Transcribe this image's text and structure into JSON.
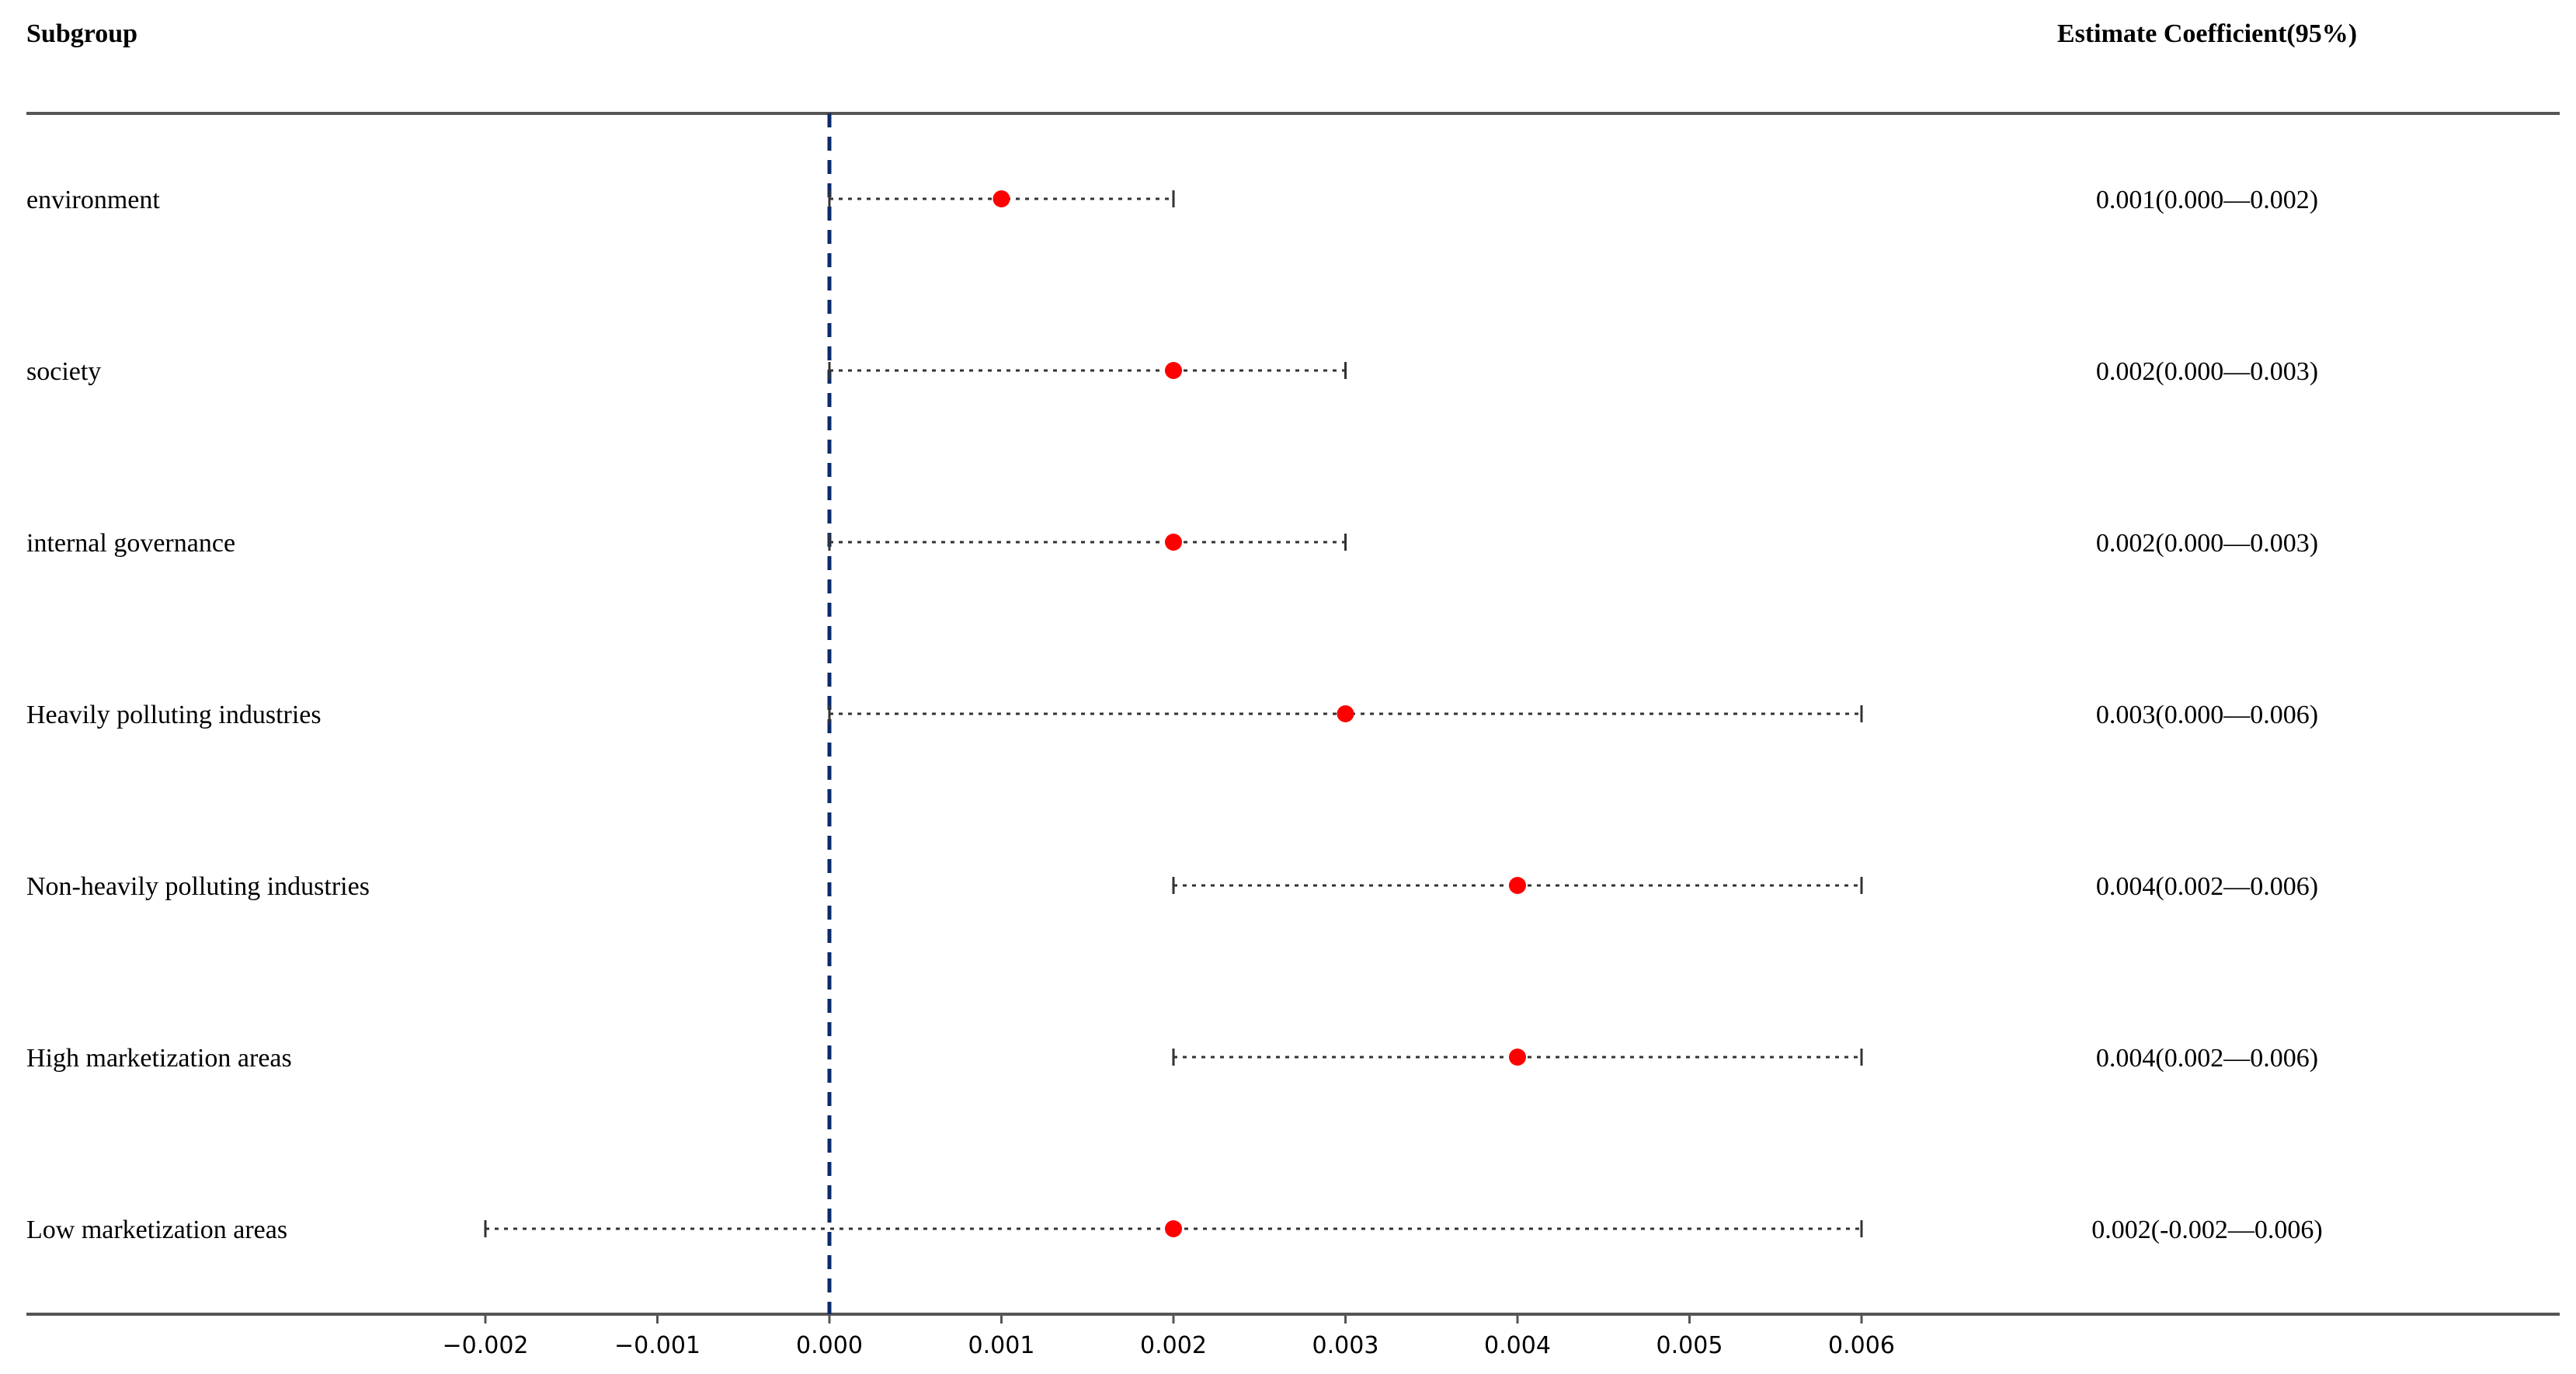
{
  "chart_data": {
    "type": "scatter",
    "subtype": "forest-plot",
    "column_headers": {
      "subgroup": "Subgroup",
      "estimate": "Estimate Coefficient(95%)"
    },
    "rows": [
      {
        "label": "environment",
        "estimate": 0.001,
        "lower": 0.0,
        "upper": 0.002,
        "text": "0.001(0.000—0.002)"
      },
      {
        "label": "society",
        "estimate": 0.002,
        "lower": 0.0,
        "upper": 0.003,
        "text": "0.002(0.000—0.003)"
      },
      {
        "label": "internal governance",
        "estimate": 0.002,
        "lower": 0.0,
        "upper": 0.003,
        "text": "0.002(0.000—0.003)"
      },
      {
        "label": "Heavily polluting industries",
        "estimate": 0.003,
        "lower": 0.0,
        "upper": 0.006,
        "text": "0.003(0.000—0.006)"
      },
      {
        "label": "Non-heavily polluting industries",
        "estimate": 0.004,
        "lower": 0.002,
        "upper": 0.006,
        "text": "0.004(0.002—0.006)"
      },
      {
        "label": "High marketization areas",
        "estimate": 0.004,
        "lower": 0.002,
        "upper": 0.006,
        "text": "0.004(0.002—0.006)"
      },
      {
        "label": "Low marketization areas",
        "estimate": 0.002,
        "lower": -0.002,
        "upper": 0.006,
        "text": "0.002(-0.002—0.006)"
      }
    ],
    "x_ticks": [
      -0.002,
      -0.001,
      0.0,
      0.001,
      0.002,
      0.003,
      0.004,
      0.005,
      0.006
    ],
    "x_tick_labels": [
      "−0.002",
      "−0.001",
      "0.000",
      "0.001",
      "0.002",
      "0.003",
      "0.004",
      "0.005",
      "0.006"
    ],
    "reference_line": 0.0,
    "xlim": [
      -0.002,
      0.006
    ],
    "grid": false,
    "colors": {
      "point": "#ff0000",
      "reference_line": "#0b2a6b",
      "whisker": "#333333",
      "axis": "#555555",
      "text": "#000000"
    }
  }
}
